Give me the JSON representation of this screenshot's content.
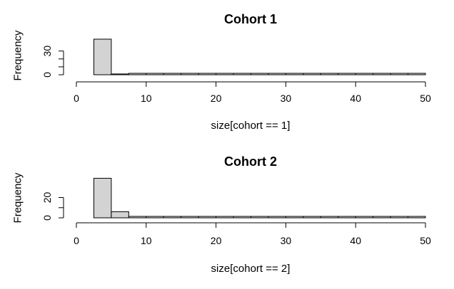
{
  "chart_data": [
    {
      "type": "bar",
      "subtype": "histogram",
      "title": "Cohort 1",
      "xlabel": "size[cohort == 1]",
      "ylabel": "Frequency",
      "xlim": [
        0,
        50
      ],
      "ylim": [
        0,
        45
      ],
      "x_ticks": [
        0,
        10,
        20,
        30,
        40,
        50
      ],
      "y_ticks": [
        0,
        30
      ],
      "bins": [
        [
          2.5,
          5
        ],
        [
          5,
          7.5
        ],
        [
          7.5,
          10
        ],
        [
          10,
          12.5
        ],
        [
          12.5,
          15
        ],
        [
          15,
          17.5
        ],
        [
          17.5,
          20
        ],
        [
          20,
          22.5
        ],
        [
          22.5,
          25
        ],
        [
          25,
          27.5
        ],
        [
          27.5,
          30
        ],
        [
          30,
          32.5
        ],
        [
          32.5,
          35
        ],
        [
          35,
          37.5
        ],
        [
          37.5,
          40
        ],
        [
          40,
          42.5
        ],
        [
          42.5,
          45
        ],
        [
          45,
          47.5
        ],
        [
          47.5,
          50
        ]
      ],
      "values": [
        45,
        1,
        0,
        0,
        0,
        0,
        0,
        0,
        0,
        0,
        0,
        0,
        0,
        0,
        0,
        0,
        0,
        0,
        0
      ],
      "colors": {
        "bar": "#d3d3d3",
        "border": "#000000"
      }
    },
    {
      "type": "bar",
      "subtype": "histogram",
      "title": "Cohort 2",
      "xlabel": "size[cohort == 2]",
      "ylabel": "Frequency",
      "xlim": [
        0,
        50
      ],
      "ylim": [
        0,
        40
      ],
      "x_ticks": [
        0,
        10,
        20,
        30,
        40,
        50
      ],
      "y_ticks": [
        0,
        20
      ],
      "bins": [
        [
          2.5,
          5
        ],
        [
          5,
          7.5
        ],
        [
          7.5,
          10
        ],
        [
          10,
          12.5
        ],
        [
          12.5,
          15
        ],
        [
          15,
          17.5
        ],
        [
          17.5,
          20
        ],
        [
          20,
          22.5
        ],
        [
          22.5,
          25
        ],
        [
          25,
          27.5
        ],
        [
          27.5,
          30
        ],
        [
          30,
          32.5
        ],
        [
          32.5,
          35
        ],
        [
          35,
          37.5
        ],
        [
          37.5,
          40
        ],
        [
          40,
          42.5
        ],
        [
          42.5,
          45
        ],
        [
          45,
          47.5
        ],
        [
          47.5,
          50
        ]
      ],
      "values": [
        39,
        6,
        0,
        0,
        0,
        0,
        0,
        0,
        0,
        0,
        0,
        0,
        0,
        0,
        0,
        0,
        0,
        0,
        0
      ],
      "colors": {
        "bar": "#d3d3d3",
        "border": "#000000"
      }
    }
  ]
}
